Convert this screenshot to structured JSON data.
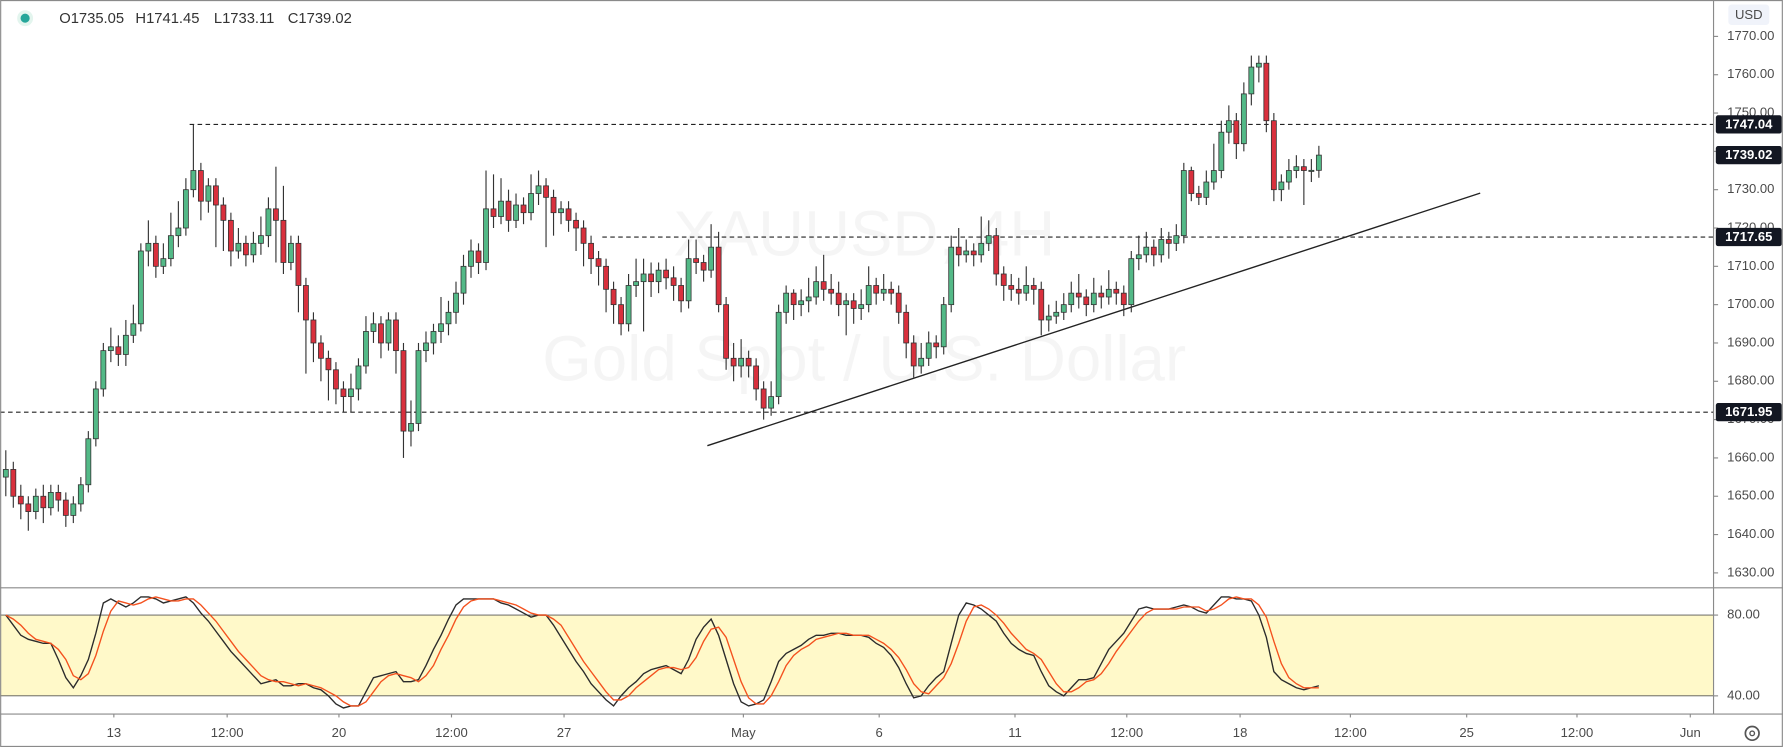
{
  "legend_labels": [
    "O1735.05",
    "H1741.45",
    "L1733.11",
    "C1739.02"
  ],
  "currency": "USD",
  "watermark": [
    "XAUUSD, 4H",
    "Gold Spot / U.S. Dollar"
  ],
  "chart_data": [
    {
      "type": "candlestick",
      "xlim": [
        -0.76,
        227.6
      ],
      "ylim": [
        1626.4,
        1779.5
      ],
      "xticks": [
        {
          "value": 14.4,
          "label": "13"
        },
        {
          "value": 29.5,
          "label": "12:00"
        },
        {
          "value": 44.4,
          "label": "20"
        },
        {
          "value": 59.4,
          "label": "12:00"
        },
        {
          "value": 74.4,
          "label": "27"
        },
        {
          "value": 98.3,
          "label": "May"
        },
        {
          "value": 116.4,
          "label": "6"
        },
        {
          "value": 134.5,
          "label": "11"
        },
        {
          "value": 149.4,
          "label": "12:00"
        },
        {
          "value": 164.5,
          "label": "18"
        },
        {
          "value": 179.2,
          "label": "12:00"
        },
        {
          "value": 194.7,
          "label": "25"
        },
        {
          "value": 209.4,
          "label": "12:00"
        },
        {
          "value": 224.5,
          "label": "Jun"
        }
      ],
      "yticks": [
        {
          "value": 1770,
          "label": "1770.00"
        },
        {
          "value": 1760,
          "label": "1760.00"
        },
        {
          "value": 1750,
          "label": "1750.00"
        },
        {
          "value": 1740,
          "label": "1740.00"
        },
        {
          "value": 1730,
          "label": "1730.00"
        },
        {
          "value": 1720,
          "label": "1720.00"
        },
        {
          "value": 1710,
          "label": "1710.00"
        },
        {
          "value": 1700,
          "label": "1700.00"
        },
        {
          "value": 1690,
          "label": "1690.00"
        },
        {
          "value": 1680,
          "label": "1680.00"
        },
        {
          "value": 1670,
          "label": "1670.00"
        },
        {
          "value": 1660,
          "label": "1660.00"
        },
        {
          "value": 1650,
          "label": "1650.00"
        },
        {
          "value": 1640,
          "label": "1640.00"
        },
        {
          "value": 1630,
          "label": "1630.00"
        }
      ],
      "up_color": "#53b987",
      "down_color": "#d9303d",
      "wick_color": "#333333",
      "open": [
        1655,
        1657,
        1650,
        1648,
        1646,
        1650,
        1647,
        1651,
        1649,
        1645,
        1648,
        1653,
        1665,
        1678,
        1688,
        1689,
        1687,
        1692,
        1695,
        1714,
        1716,
        1710,
        1712,
        1718,
        1720,
        1730,
        1735,
        1727,
        1731,
        1726,
        1722,
        1714,
        1716,
        1713,
        1716,
        1718,
        1725,
        1722,
        1711,
        1716,
        1705,
        1696,
        1690,
        1686,
        1683,
        1678,
        1676,
        1678,
        1684,
        1693,
        1695,
        1690,
        1696,
        1688,
        1667,
        1669,
        1688,
        1690,
        1693,
        1695,
        1698,
        1703,
        1710,
        1714,
        1711,
        1725,
        1723,
        1727,
        1722,
        1726,
        1724,
        1729,
        1731,
        1728,
        1724,
        1725,
        1722,
        1720,
        1716,
        1712,
        1710,
        1704,
        1700,
        1695,
        1705,
        1706,
        1708,
        1706,
        1709,
        1707,
        1705,
        1701,
        1712,
        1711,
        1709,
        1715,
        1700,
        1686,
        1684,
        1686,
        1684,
        1678,
        1673,
        1676,
        1698,
        1703,
        1700,
        1701,
        1702,
        1706,
        1704,
        1703,
        1700,
        1701,
        1699,
        1700,
        1705,
        1703,
        1704,
        1703,
        1698,
        1690,
        1684,
        1686,
        1690,
        1689,
        1700,
        1715,
        1713,
        1714,
        1713,
        1716,
        1718,
        1708,
        1705,
        1704,
        1703,
        1705,
        1704,
        1696,
        1697,
        1698,
        1700,
        1703,
        1702,
        1700,
        1703,
        1702,
        1704,
        1703,
        1700,
        1712,
        1713,
        1715,
        1713,
        1717,
        1716,
        1718,
        1735,
        1729,
        1728,
        1732,
        1735,
        1745,
        1748,
        1742,
        1755,
        1762,
        1763,
        1748,
        1730,
        1732,
        1735,
        1736,
        1735,
        1735.05
      ],
      "high": [
        1662,
        1659,
        1653,
        1650,
        1652,
        1653,
        1653,
        1653,
        1651,
        1650,
        1655,
        1667,
        1680,
        1690,
        1694,
        1692,
        1696,
        1700,
        1716,
        1722,
        1718,
        1716,
        1724,
        1727,
        1733,
        1747,
        1737,
        1733,
        1733,
        1728,
        1724,
        1720,
        1718,
        1719,
        1723,
        1728,
        1736,
        1731,
        1718,
        1718,
        1707,
        1698,
        1692,
        1688,
        1685,
        1680,
        1682,
        1686,
        1697,
        1698,
        1697,
        1698,
        1698,
        1690,
        1675,
        1690,
        1693,
        1695,
        1702,
        1701,
        1706,
        1713,
        1717,
        1716,
        1735,
        1734,
        1733,
        1730,
        1729,
        1728,
        1734,
        1735,
        1733,
        1730,
        1727,
        1727,
        1724,
        1722,
        1718,
        1714,
        1712,
        1706,
        1702,
        1708,
        1712,
        1712,
        1711,
        1711,
        1712,
        1710,
        1707,
        1717,
        1717,
        1713,
        1721,
        1719,
        1702,
        1690,
        1691,
        1688,
        1686,
        1680,
        1680,
        1700,
        1705,
        1704,
        1704,
        1707,
        1710,
        1713,
        1708,
        1706,
        1703,
        1703,
        1704,
        1710,
        1707,
        1708,
        1706,
        1705,
        1700,
        1692,
        1690,
        1693,
        1692,
        1702,
        1718,
        1720,
        1717,
        1716,
        1723,
        1722,
        1720,
        1710,
        1708,
        1707,
        1710,
        1707,
        1706,
        1700,
        1701,
        1703,
        1706,
        1708,
        1704,
        1707,
        1705,
        1709,
        1706,
        1705,
        1714,
        1718,
        1719,
        1717,
        1720,
        1719,
        1721,
        1737,
        1736,
        1731,
        1735,
        1742,
        1748,
        1752,
        1750,
        1758,
        1765,
        1765,
        1765,
        1750,
        1734,
        1738,
        1739,
        1738,
        1738,
        1741.45
      ],
      "low": [
        1650,
        1647,
        1644,
        1641,
        1644,
        1643,
        1645,
        1646,
        1642,
        1643,
        1646,
        1651,
        1663,
        1676,
        1685,
        1684,
        1684,
        1690,
        1693,
        1710,
        1707,
        1708,
        1710,
        1715,
        1718,
        1728,
        1722,
        1724,
        1715,
        1714,
        1710,
        1712,
        1710,
        1711,
        1713,
        1715,
        1711,
        1708,
        1709,
        1698,
        1682,
        1685,
        1680,
        1675,
        1674,
        1672,
        1672,
        1675,
        1682,
        1690,
        1686,
        1688,
        1682,
        1660,
        1663,
        1667,
        1685,
        1687,
        1690,
        1692,
        1695,
        1700,
        1707,
        1708,
        1709,
        1720,
        1721,
        1719,
        1720,
        1721,
        1722,
        1726,
        1715,
        1718,
        1721,
        1719,
        1714,
        1710,
        1708,
        1705,
        1698,
        1695,
        1692,
        1693,
        1702,
        1693,
        1702,
        1703,
        1704,
        1701,
        1698,
        1699,
        1708,
        1706,
        1707,
        1698,
        1683,
        1680,
        1681,
        1681,
        1675,
        1670,
        1671,
        1674,
        1695,
        1696,
        1697,
        1698,
        1700,
        1701,
        1700,
        1697,
        1692,
        1695,
        1696,
        1698,
        1700,
        1701,
        1700,
        1695,
        1686,
        1681,
        1682,
        1684,
        1686,
        1687,
        1698,
        1710,
        1711,
        1710,
        1711,
        1714,
        1705,
        1701,
        1701,
        1700,
        1701,
        1700,
        1692,
        1693,
        1695,
        1696,
        1698,
        1699,
        1697,
        1698,
        1699,
        1700,
        1700,
        1697,
        1698,
        1709,
        1711,
        1710,
        1711,
        1712,
        1714,
        1716,
        1727,
        1726,
        1726,
        1730,
        1733,
        1742,
        1738,
        1740,
        1752,
        1758,
        1745,
        1727,
        1727,
        1730,
        1733,
        1726,
        1732,
        1733.11
      ],
      "close": [
        1657,
        1650,
        1648,
        1646,
        1650,
        1647,
        1651,
        1649,
        1645,
        1648,
        1653,
        1665,
        1678,
        1688,
        1689,
        1687,
        1692,
        1695,
        1714,
        1716,
        1710,
        1712,
        1718,
        1720,
        1730,
        1735,
        1727,
        1731,
        1726,
        1722,
        1714,
        1716,
        1713,
        1716,
        1718,
        1725,
        1722,
        1711,
        1716,
        1705,
        1696,
        1690,
        1686,
        1683,
        1678,
        1676,
        1678,
        1684,
        1693,
        1695,
        1690,
        1696,
        1688,
        1667,
        1669,
        1688,
        1690,
        1693,
        1695,
        1698,
        1703,
        1710,
        1714,
        1711,
        1725,
        1723,
        1727,
        1722,
        1726,
        1724,
        1729,
        1731,
        1728,
        1724,
        1725,
        1722,
        1720,
        1716,
        1712,
        1710,
        1704,
        1700,
        1695,
        1705,
        1706,
        1708,
        1706,
        1709,
        1707,
        1705,
        1701,
        1712,
        1711,
        1709,
        1715,
        1700,
        1686,
        1684,
        1686,
        1684,
        1678,
        1673,
        1676,
        1698,
        1703,
        1700,
        1701,
        1702,
        1706,
        1704,
        1703,
        1700,
        1701,
        1699,
        1700,
        1705,
        1703,
        1704,
        1703,
        1698,
        1690,
        1684,
        1686,
        1690,
        1689,
        1700,
        1715,
        1713,
        1714,
        1713,
        1716,
        1718,
        1708,
        1705,
        1704,
        1703,
        1705,
        1704,
        1696,
        1697,
        1698,
        1700,
        1703,
        1702,
        1700,
        1703,
        1702,
        1704,
        1703,
        1700,
        1712,
        1713,
        1715,
        1713,
        1717,
        1716,
        1718,
        1735,
        1729,
        1728,
        1732,
        1735,
        1745,
        1748,
        1742,
        1755,
        1762,
        1763,
        1748,
        1730,
        1732,
        1735,
        1736,
        1735,
        1735.05,
        1739.02
      ],
      "levels": [
        {
          "value": 1747.04,
          "label": "1747.04",
          "start": 24.5
        },
        {
          "value": 1717.65,
          "label": "1717.65",
          "start": 79.5
        },
        {
          "value": 1671.95,
          "label": "1671.95",
          "start": -0.76
        }
      ],
      "last_price": {
        "value": 1739.02,
        "label": "1739.02"
      },
      "trendline": {
        "x": [
          93.5,
          196.5
        ],
        "y": [
          1663.2,
          1729.1
        ]
      }
    },
    {
      "type": "line",
      "ylim": [
        31,
        93.5
      ],
      "yticks": [
        {
          "value": 80,
          "label": "80.00"
        },
        {
          "value": 40,
          "label": "40.00"
        }
      ],
      "band": [
        40,
        80
      ],
      "band_color": "#fff9c9",
      "series": [
        {
          "color": "#2b2b2b",
          "values": [
            80,
            75,
            70,
            68,
            67,
            66,
            66,
            58,
            49,
            44,
            50,
            58,
            71,
            86,
            88,
            86,
            84,
            86,
            89,
            89,
            88,
            86,
            87,
            88,
            89,
            86,
            81,
            77,
            72,
            67,
            62,
            58,
            54,
            50,
            46,
            47,
            48,
            45,
            45,
            46,
            46,
            44,
            43,
            40,
            36,
            34,
            35,
            35,
            42,
            49,
            50,
            51,
            52,
            47,
            47,
            48,
            55,
            63,
            70,
            78,
            85,
            88,
            88,
            88,
            88,
            88,
            86,
            85,
            83,
            81,
            79,
            80,
            80,
            75,
            69,
            63,
            57,
            52,
            46,
            42,
            38,
            35,
            40,
            44,
            47,
            51,
            53,
            54,
            55,
            53,
            51,
            58,
            68,
            74,
            78,
            70,
            58,
            46,
            37,
            35,
            36,
            38,
            47,
            57,
            61,
            63,
            65,
            68,
            70,
            70,
            71,
            71,
            70,
            70,
            70,
            69,
            66,
            64,
            60,
            54,
            46,
            39,
            40,
            45,
            49,
            52,
            66,
            80,
            86,
            85,
            83,
            80,
            77,
            71,
            66,
            63,
            61,
            60,
            52,
            45,
            42,
            40,
            44,
            48,
            48,
            49,
            56,
            63,
            67,
            71,
            77,
            83,
            84,
            83,
            83,
            83,
            84,
            85,
            84,
            82,
            81,
            85,
            89,
            89,
            88,
            88,
            87,
            80,
            69,
            52,
            48,
            46,
            44,
            43,
            44,
            45
          ]
        },
        {
          "color": "#f4511e",
          "values": [
            80,
            78,
            75,
            71,
            68,
            67,
            66,
            63,
            58,
            50,
            48,
            51,
            60,
            72,
            82,
            87,
            86,
            85,
            86,
            88,
            89,
            88,
            87,
            87,
            88,
            88,
            85,
            81,
            77,
            72,
            67,
            62,
            58,
            54,
            50,
            48,
            47,
            47,
            46,
            45,
            46,
            45,
            44,
            42,
            40,
            37,
            35,
            35,
            37,
            42,
            47,
            50,
            51,
            50,
            49,
            47,
            50,
            55,
            63,
            70,
            78,
            84,
            87,
            88,
            88,
            88,
            87,
            86,
            85,
            83,
            81,
            80,
            80,
            78,
            75,
            69,
            63,
            57,
            52,
            47,
            42,
            38,
            38,
            40,
            44,
            47,
            50,
            53,
            54,
            54,
            53,
            54,
            59,
            67,
            73,
            74,
            69,
            58,
            47,
            39,
            36,
            36,
            40,
            47,
            55,
            60,
            63,
            65,
            68,
            69,
            70,
            71,
            71,
            70,
            70,
            70,
            68,
            66,
            63,
            59,
            53,
            46,
            42,
            41,
            45,
            49,
            56,
            66,
            77,
            84,
            85,
            83,
            80,
            76,
            71,
            67,
            63,
            61,
            58,
            52,
            46,
            42,
            42,
            44,
            47,
            48,
            51,
            56,
            62,
            67,
            72,
            77,
            81,
            83,
            83,
            83,
            83,
            84,
            84,
            84,
            82,
            83,
            85,
            88,
            89,
            88,
            88,
            85,
            79,
            67,
            56,
            49,
            46,
            44,
            44,
            44
          ]
        }
      ]
    }
  ]
}
